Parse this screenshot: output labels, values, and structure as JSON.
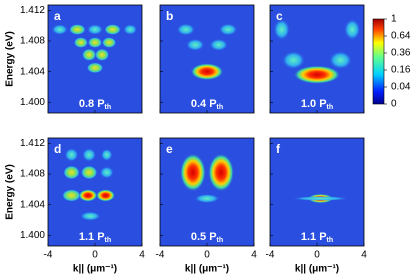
{
  "chart_data": [
    {
      "type": "heatmap",
      "label": "a",
      "annotation": "0.8 P",
      "annotation_sub": "th",
      "ylabel": "Energy (eV)",
      "xlim": [
        -4,
        4
      ],
      "xticks": [
        -4,
        0,
        4
      ],
      "ylim": [
        1.3986,
        1.4127
      ],
      "yticks": [
        {
          "value": 1.4,
          "label": "1.400"
        },
        1.404,
        1.408,
        1.412
      ]
    },
    {
      "type": "heatmap",
      "label": "b",
      "annotation": "0.4 P",
      "annotation_sub": "th",
      "xlim": [
        -4,
        4
      ],
      "xticks": [
        -4,
        0,
        4
      ],
      "ylim": [
        1.3986,
        1.4127
      ],
      "yticks": [
        {
          "value": 1.4,
          "label": "1.400"
        },
        1.404,
        1.408,
        1.412
      ]
    },
    {
      "type": "heatmap",
      "label": "c",
      "annotation": "1.0 P",
      "annotation_sub": "th",
      "xlim": [
        -4,
        4
      ],
      "xticks": [
        -4,
        0,
        4
      ],
      "ylim": [
        1.3986,
        1.4127
      ],
      "yticks": [
        {
          "value": 1.4,
          "label": "1.400"
        },
        1.404,
        1.408,
        1.412
      ]
    },
    {
      "type": "heatmap",
      "label": "d",
      "annotation": "1.1 P",
      "annotation_sub": "th",
      "ylabel": "Energy (eV)",
      "xlabel": "k|| (μm⁻¹)",
      "xlim": [
        -4,
        4
      ],
      "xticks": [
        -4,
        0,
        4
      ],
      "ylim": [
        1.3986,
        1.4127
      ],
      "yticks": [
        {
          "value": 1.4,
          "label": "1.400"
        },
        1.404,
        1.408,
        1.412
      ]
    },
    {
      "type": "heatmap",
      "label": "e",
      "annotation": "0.5 P",
      "annotation_sub": "th",
      "xlabel": "k|| (μm⁻¹)",
      "xlim": [
        -4,
        4
      ],
      "xticks": [
        -4,
        0,
        4
      ],
      "ylim": [
        1.3986,
        1.4127
      ],
      "yticks": [
        {
          "value": 1.4,
          "label": "1.400"
        },
        1.404,
        1.408,
        1.412
      ]
    },
    {
      "type": "heatmap",
      "label": "f",
      "annotation": "1.1 P",
      "annotation_sub": "th",
      "xlabel": "k|| (μm⁻¹)",
      "xlim": [
        -4,
        4
      ],
      "xticks": [
        -4,
        0,
        4
      ],
      "ylim": [
        1.3986,
        1.4127
      ],
      "yticks": [
        {
          "value": 1.4,
          "label": "1.400"
        },
        1.404,
        1.408,
        1.412
      ]
    },
    {
      "type": "colorbar",
      "scale": "sqrt",
      "lim": [
        0,
        1
      ],
      "ticks": [
        1,
        0.64,
        0.36,
        0.16,
        0.04,
        0
      ]
    }
  ]
}
